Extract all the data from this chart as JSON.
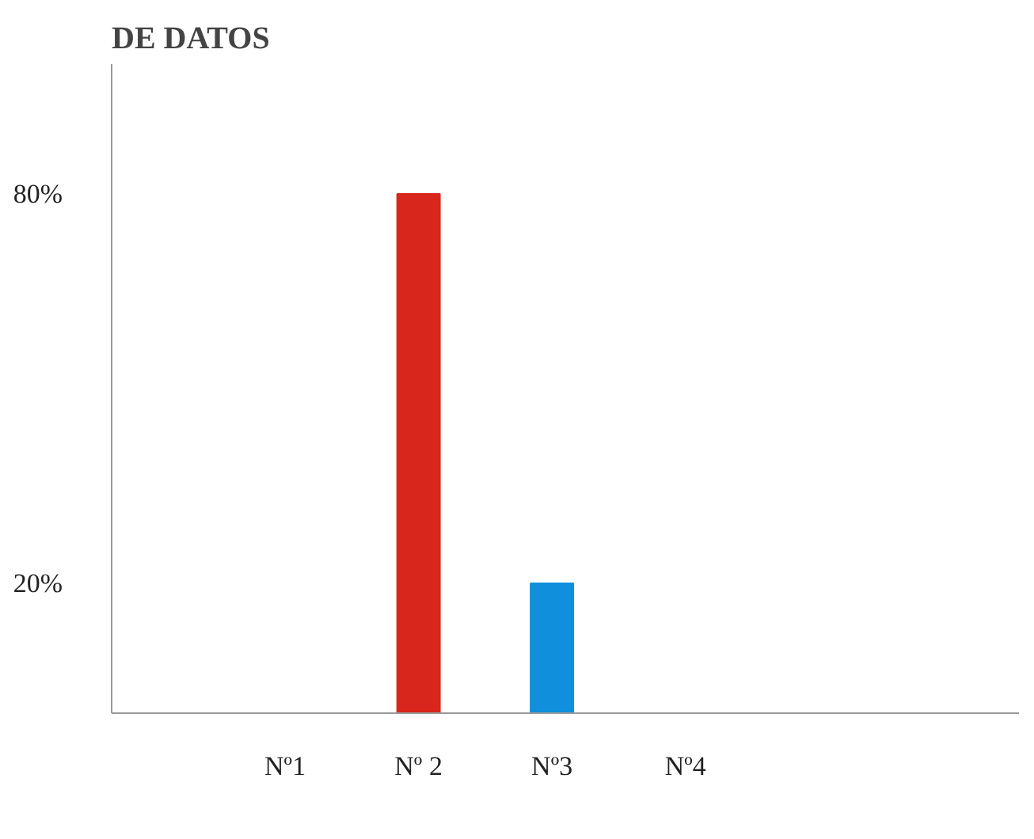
{
  "chart_data": {
    "type": "bar",
    "title": "DE DATOS",
    "categories": [
      "Nº1",
      "Nº 2",
      "Nº3",
      "Nº4"
    ],
    "values": [
      0,
      80,
      20,
      0
    ],
    "colors": [
      "#d9261c",
      "#d9261c",
      "#0f8fdc",
      "#0f8fdc"
    ],
    "ylim": [
      0,
      100
    ],
    "yticks": [
      {
        "value": 20,
        "label": "20%"
      },
      {
        "value": 80,
        "label": "80%"
      }
    ]
  }
}
